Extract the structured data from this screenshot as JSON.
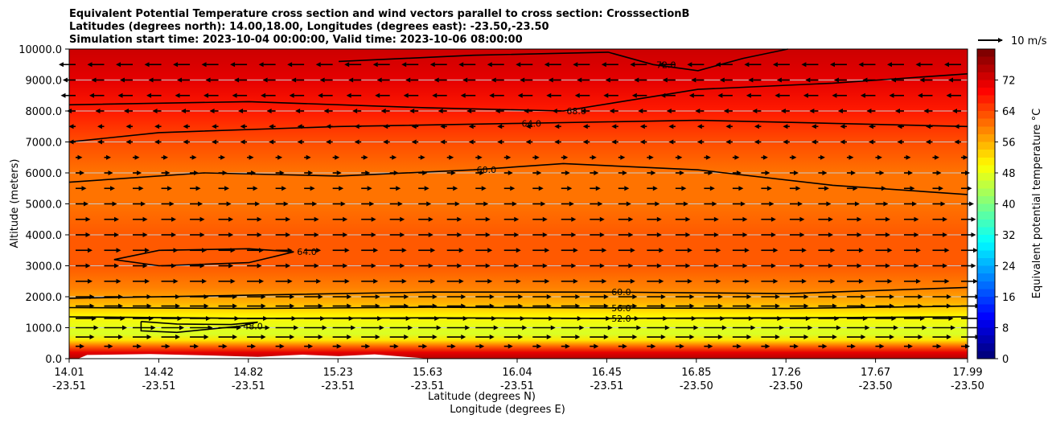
{
  "chart_data": {
    "type": "heatmap",
    "title_lines": [
      "Equivalent Potential Temperature cross section and wind vectors parallel to cross section: CrosssectionB",
      "Latitudes (degrees north): 14.00,18.00, Longitudes (degrees east): -23.50,-23.50",
      "Simulation start time: 2023-10-04 00:00:00, Valid time: 2023-10-06 08:00:00"
    ],
    "ylabel": "Altitude (meters)",
    "xlabel_lat": "Latitude (degrees N)",
    "xlabel_lon": "Longitude (degrees E)",
    "colorbar_label": "Equivalent potential temperature $^\\circ$C",
    "colorbar_label_text": "Equivalent potential temperature °C",
    "quiver_key_label": "10 m/s",
    "ylim": [
      0,
      10000
    ],
    "y_ticks": [
      0,
      1000,
      2000,
      3000,
      4000,
      5000,
      6000,
      7000,
      8000,
      9000,
      10000
    ],
    "y_tick_labels": [
      "0.0",
      "1000.0",
      "2000.0",
      "3000.0",
      "4000.0",
      "5000.0",
      "6000.0",
      "7000.0",
      "8000.0",
      "9000.0",
      "10000.0"
    ],
    "x_ticks": [
      {
        "lat": "14.01",
        "lon": "-23.51"
      },
      {
        "lat": "14.42",
        "lon": "-23.51"
      },
      {
        "lat": "14.82",
        "lon": "-23.51"
      },
      {
        "lat": "15.23",
        "lon": "-23.51"
      },
      {
        "lat": "15.63",
        "lon": "-23.51"
      },
      {
        "lat": "16.04",
        "lon": "-23.51"
      },
      {
        "lat": "16.45",
        "lon": "-23.51"
      },
      {
        "lat": "16.85",
        "lon": "-23.50"
      },
      {
        "lat": "17.26",
        "lon": "-23.50"
      },
      {
        "lat": "17.67",
        "lon": "-23.50"
      },
      {
        "lat": "17.99",
        "lon": "-23.50"
      }
    ],
    "colorbar_range": [
      0,
      80
    ],
    "colorbar_ticks": [
      "0",
      "8",
      "16",
      "24",
      "32",
      "40",
      "48",
      "56",
      "64",
      "72"
    ],
    "vertical_profile": [
      {
        "alt": 0,
        "theta_e": 76
      },
      {
        "alt": 200,
        "theta_e": 72
      },
      {
        "alt": 400,
        "theta_e": 62
      },
      {
        "alt": 600,
        "theta_e": 52
      },
      {
        "alt": 800,
        "theta_e": 47
      },
      {
        "alt": 1000,
        "theta_e": 48
      },
      {
        "alt": 1400,
        "theta_e": 51
      },
      {
        "alt": 1800,
        "theta_e": 56
      },
      {
        "alt": 2300,
        "theta_e": 60
      },
      {
        "alt": 3000,
        "theta_e": 63
      },
      {
        "alt": 4000,
        "theta_e": 63
      },
      {
        "alt": 5000,
        "theta_e": 61
      },
      {
        "alt": 6000,
        "theta_e": 61
      },
      {
        "alt": 7000,
        "theta_e": 64
      },
      {
        "alt": 8000,
        "theta_e": 68
      },
      {
        "alt": 9000,
        "theta_e": 72
      },
      {
        "alt": 10000,
        "theta_e": 74
      }
    ],
    "contours": [
      {
        "value": 48,
        "label": "48.0",
        "points": [
          [
            0.08,
            1200
          ],
          [
            0.12,
            1120
          ],
          [
            0.18,
            1100
          ],
          [
            0.21,
            1180
          ],
          [
            0.19,
            1050
          ],
          [
            0.12,
            850
          ],
          [
            0.08,
            900
          ],
          [
            0.08,
            1200
          ]
        ]
      },
      {
        "value": 52,
        "label": "52.0",
        "points": [
          [
            0,
            1350
          ],
          [
            0.2,
            1300
          ],
          [
            0.4,
            1320
          ],
          [
            0.6,
            1300
          ],
          [
            0.8,
            1320
          ],
          [
            1,
            1350
          ]
        ]
      },
      {
        "value": 56,
        "label": "56.0",
        "points": [
          [
            0,
            1650
          ],
          [
            0.2,
            1620
          ],
          [
            0.4,
            1660
          ],
          [
            0.6,
            1640
          ],
          [
            0.8,
            1620
          ],
          [
            1,
            1700
          ]
        ]
      },
      {
        "value": 60,
        "label": "60.0",
        "points": [
          [
            0,
            1950
          ],
          [
            0.2,
            2050
          ],
          [
            0.4,
            2150
          ],
          [
            0.6,
            2150
          ],
          [
            0.8,
            2100
          ],
          [
            1,
            2300
          ]
        ]
      },
      {
        "value": 64,
        "label": "64.0",
        "points": [
          [
            0.05,
            3200
          ],
          [
            0.1,
            3500
          ],
          [
            0.2,
            3550
          ],
          [
            0.25,
            3450
          ],
          [
            0.2,
            3100
          ],
          [
            0.1,
            3000
          ],
          [
            0.05,
            3200
          ]
        ]
      },
      {
        "value": 60,
        "label": "60.0",
        "points": [
          [
            0,
            5700
          ],
          [
            0.05,
            5800
          ],
          [
            0.15,
            6000
          ],
          [
            0.3,
            5900
          ],
          [
            0.45,
            6100
          ],
          [
            0.55,
            6300
          ],
          [
            0.7,
            6100
          ],
          [
            0.85,
            5600
          ],
          [
            1,
            5300
          ]
        ]
      },
      {
        "value": 64,
        "label": "64.0",
        "points": [
          [
            0,
            7000
          ],
          [
            0.1,
            7300
          ],
          [
            0.3,
            7500
          ],
          [
            0.5,
            7600
          ],
          [
            0.7,
            7700
          ],
          [
            0.85,
            7600
          ],
          [
            1,
            7500
          ]
        ]
      },
      {
        "value": 68,
        "label": "68.0",
        "points": [
          [
            0,
            8200
          ],
          [
            0.2,
            8300
          ],
          [
            0.4,
            8100
          ],
          [
            0.55,
            8000
          ],
          [
            0.7,
            8700
          ],
          [
            0.85,
            8900
          ],
          [
            1,
            9200
          ]
        ]
      },
      {
        "value": 72,
        "label": "72.0",
        "points": [
          [
            0.3,
            9600
          ],
          [
            0.45,
            9800
          ],
          [
            0.6,
            9900
          ],
          [
            0.65,
            9500
          ],
          [
            0.7,
            9300
          ],
          [
            0.75,
            9700
          ],
          [
            0.8,
            10000
          ]
        ]
      }
    ],
    "wind_rows": [
      {
        "alt": 400,
        "u": 2
      },
      {
        "alt": 700,
        "u": 7
      },
      {
        "alt": 1000,
        "u": 9
      },
      {
        "alt": 1300,
        "u": 8
      },
      {
        "alt": 1700,
        "u": 7
      },
      {
        "alt": 2000,
        "u": 7
      },
      {
        "alt": 2500,
        "u": 6
      },
      {
        "alt": 3000,
        "u": 5
      },
      {
        "alt": 3500,
        "u": 6
      },
      {
        "alt": 4000,
        "u": 5
      },
      {
        "alt": 4500,
        "u": 5
      },
      {
        "alt": 5000,
        "u": 4
      },
      {
        "alt": 5500,
        "u": 3
      },
      {
        "alt": 6000,
        "u": 2
      },
      {
        "alt": 6500,
        "u": 1
      },
      {
        "alt": 7000,
        "u": -1
      },
      {
        "alt": 7500,
        "u": -1
      },
      {
        "alt": 8000,
        "u": -2
      },
      {
        "alt": 8500,
        "u": -5
      },
      {
        "alt": 9000,
        "u": -4
      },
      {
        "alt": 9500,
        "u": -6
      }
    ]
  }
}
